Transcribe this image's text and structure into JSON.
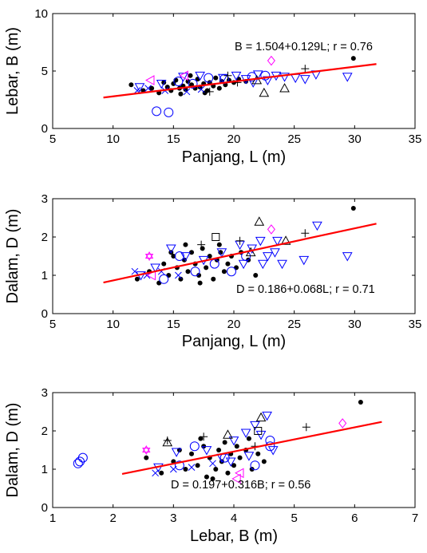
{
  "colors": {
    "fit_line": "#ff0000",
    "black": "#000000",
    "blue": "#0000ff",
    "magenta": "#ff00ff",
    "axis": "#000000"
  },
  "marker_legend_note": "",
  "chart_data": [
    {
      "type": "scatter",
      "xlabel": "Panjang, L (m)",
      "ylabel": "Lebar, B (m)",
      "xlim": [
        5,
        35
      ],
      "ylim": [
        0,
        10
      ],
      "xticks": [
        5,
        10,
        15,
        20,
        25,
        30,
        35
      ],
      "yticks": [
        0,
        5,
        10
      ],
      "annotation": "B = 1.504+0.129L;    r = 0.76",
      "fit": {
        "intercept": 1.504,
        "slope": 0.129,
        "x_range": [
          9.2,
          31.8
        ]
      },
      "series": [
        {
          "marker": "dot",
          "color": "#000000",
          "points": [
            [
              11.5,
              3.8
            ],
            [
              12.5,
              3.3
            ],
            [
              13.2,
              3.5
            ],
            [
              13.8,
              3.1
            ],
            [
              14.2,
              4.0
            ],
            [
              14.5,
              3.6
            ],
            [
              14.8,
              3.3
            ],
            [
              15.0,
              3.9
            ],
            [
              15.2,
              4.2
            ],
            [
              15.5,
              3.5
            ],
            [
              15.8,
              3.7
            ],
            [
              16.0,
              3.4
            ],
            [
              16.2,
              4.1
            ],
            [
              16.5,
              3.8
            ],
            [
              16.8,
              3.5
            ],
            [
              17.0,
              4.3
            ],
            [
              17.2,
              3.6
            ],
            [
              17.5,
              3.9
            ],
            [
              17.8,
              3.3
            ],
            [
              18.0,
              4.0
            ],
            [
              18.3,
              3.7
            ],
            [
              18.5,
              4.4
            ],
            [
              18.8,
              3.5
            ],
            [
              19.0,
              4.1
            ],
            [
              19.3,
              3.8
            ],
            [
              19.6,
              4.2
            ],
            [
              20.0,
              4.0
            ],
            [
              20.4,
              4.3
            ],
            [
              21.0,
              4.1
            ],
            [
              16.4,
              4.6
            ],
            [
              17.6,
              3.1
            ],
            [
              15.6,
              3.0
            ],
            [
              29.9,
              6.1
            ]
          ]
        },
        {
          "marker": "circle",
          "color": "#0000ff",
          "points": [
            [
              13.6,
              1.5
            ],
            [
              14.6,
              1.4
            ],
            [
              15.4,
              4.1
            ],
            [
              16.6,
              3.9
            ],
            [
              17.9,
              4.4
            ],
            [
              19.2,
              4.3
            ],
            [
              21.5,
              4.5
            ],
            [
              22.6,
              4.6
            ]
          ]
        },
        {
          "marker": "triangle-down",
          "color": "#0000ff",
          "points": [
            [
              12.2,
              3.6
            ],
            [
              14.0,
              3.9
            ],
            [
              15.8,
              4.5
            ],
            [
              17.2,
              4.6
            ],
            [
              19.1,
              4.4
            ],
            [
              21.0,
              4.3
            ],
            [
              22.0,
              4.7
            ],
            [
              22.8,
              4.2
            ],
            [
              23.5,
              4.6
            ],
            [
              24.2,
              4.5
            ],
            [
              25.1,
              4.4
            ],
            [
              25.9,
              4.3
            ],
            [
              26.8,
              4.7
            ],
            [
              29.4,
              4.5
            ],
            [
              21.6,
              4.0
            ],
            [
              20.2,
              4.6
            ]
          ]
        },
        {
          "marker": "triangle-up",
          "color": "#000000",
          "points": [
            [
              22.5,
              3.1
            ],
            [
              24.2,
              3.5
            ],
            [
              21.9,
              4.2
            ]
          ]
        },
        {
          "marker": "plus",
          "color": "#000000",
          "points": [
            [
              18.0,
              3.2
            ],
            [
              19.5,
              4.6
            ],
            [
              20.3,
              4.0
            ],
            [
              25.9,
              5.2
            ]
          ]
        },
        {
          "marker": "x",
          "color": "#0000ff",
          "points": [
            [
              12.0,
              3.3
            ],
            [
              12.9,
              3.5
            ],
            [
              14.3,
              3.3
            ],
            [
              16.1,
              3.2
            ],
            [
              17.3,
              3.4
            ]
          ]
        },
        {
          "marker": "triangle-left",
          "color": "#ff00ff",
          "points": [
            [
              13.1,
              4.2
            ],
            [
              15.9,
              4.6
            ]
          ]
        },
        {
          "marker": "diamond",
          "color": "#ff00ff",
          "points": [
            [
              23.1,
              5.9
            ]
          ]
        }
      ]
    },
    {
      "type": "scatter",
      "xlabel": "Panjang, L (m)",
      "ylabel": "Dalam, D (m)",
      "xlim": [
        5,
        35
      ],
      "ylim": [
        0,
        3
      ],
      "xticks": [
        5,
        10,
        15,
        20,
        25,
        30,
        35
      ],
      "yticks": [
        0,
        1,
        2,
        3
      ],
      "annotation": "D = 0.186+0.068L;    r = 0.71",
      "fit": {
        "intercept": 0.186,
        "slope": 0.068,
        "x_range": [
          9.2,
          31.8
        ]
      },
      "series": [
        {
          "marker": "dot",
          "color": "#000000",
          "points": [
            [
              12.0,
              0.9
            ],
            [
              13.0,
              1.1
            ],
            [
              13.8,
              0.8
            ],
            [
              14.2,
              1.3
            ],
            [
              14.6,
              1.0
            ],
            [
              15.0,
              1.5
            ],
            [
              15.3,
              1.2
            ],
            [
              15.6,
              0.9
            ],
            [
              15.9,
              1.4
            ],
            [
              16.2,
              1.1
            ],
            [
              16.5,
              1.6
            ],
            [
              16.8,
              1.3
            ],
            [
              17.1,
              1.0
            ],
            [
              17.4,
              1.7
            ],
            [
              17.7,
              1.2
            ],
            [
              18.0,
              1.5
            ],
            [
              18.3,
              0.9
            ],
            [
              18.6,
              1.4
            ],
            [
              18.9,
              1.6
            ],
            [
              19.2,
              1.1
            ],
            [
              19.5,
              1.3
            ],
            [
              19.8,
              1.5
            ],
            [
              20.2,
              1.2
            ],
            [
              20.6,
              1.6
            ],
            [
              21.2,
              1.4
            ],
            [
              21.8,
              1.0
            ],
            [
              16.0,
              1.8
            ],
            [
              17.2,
              0.8
            ],
            [
              18.8,
              1.8
            ],
            [
              14.8,
              1.6
            ],
            [
              29.9,
              2.75
            ]
          ]
        },
        {
          "marker": "circle",
          "color": "#0000ff",
          "points": [
            [
              14.2,
              0.9
            ],
            [
              15.5,
              1.5
            ],
            [
              16.8,
              1.1
            ],
            [
              18.4,
              1.3
            ],
            [
              19.8,
              1.1
            ],
            [
              21.0,
              1.5
            ]
          ]
        },
        {
          "marker": "triangle-down",
          "color": "#0000ff",
          "points": [
            [
              12.3,
              1.0
            ],
            [
              13.5,
              1.2
            ],
            [
              14.8,
              1.7
            ],
            [
              16.0,
              1.5
            ],
            [
              17.5,
              1.4
            ],
            [
              19.0,
              1.6
            ],
            [
              20.5,
              1.8
            ],
            [
              21.5,
              1.7
            ],
            [
              22.2,
              1.9
            ],
            [
              22.8,
              1.5
            ],
            [
              23.4,
              1.6
            ],
            [
              24.0,
              1.3
            ],
            [
              25.8,
              1.4
            ],
            [
              26.9,
              2.3
            ],
            [
              29.4,
              1.5
            ],
            [
              22.4,
              1.3
            ],
            [
              23.6,
              1.9
            ],
            [
              20.8,
              1.3
            ]
          ]
        },
        {
          "marker": "triangle-up",
          "color": "#000000",
          "points": [
            [
              22.1,
              2.4
            ],
            [
              24.3,
              1.9
            ],
            [
              21.4,
              1.6
            ]
          ]
        },
        {
          "marker": "square",
          "color": "#000000",
          "points": [
            [
              18.5,
              2.0
            ]
          ]
        },
        {
          "marker": "plus",
          "color": "#000000",
          "points": [
            [
              17.3,
              1.8
            ],
            [
              20.5,
              1.9
            ],
            [
              25.9,
              2.1
            ]
          ]
        },
        {
          "marker": "x",
          "color": "#0000ff",
          "points": [
            [
              11.8,
              1.1
            ],
            [
              12.8,
              1.0
            ],
            [
              14.0,
              1.1
            ],
            [
              15.4,
              1.0
            ]
          ]
        },
        {
          "marker": "triangle-left",
          "color": "#ff00ff",
          "points": [
            [
              13.2,
              1.0
            ]
          ]
        },
        {
          "marker": "diamond",
          "color": "#ff00ff",
          "points": [
            [
              23.1,
              2.2
            ]
          ]
        },
        {
          "marker": "star",
          "color": "#ff00ff",
          "points": [
            [
              13.0,
              1.5
            ]
          ]
        }
      ]
    },
    {
      "type": "scatter",
      "xlabel": "Lebar, B (m)",
      "ylabel": "Dalam, D (m)",
      "xlim": [
        1,
        7
      ],
      "ylim": [
        0,
        3
      ],
      "xticks": [
        1,
        2,
        3,
        4,
        5,
        6,
        7
      ],
      "yticks": [
        0,
        1,
        2,
        3
      ],
      "annotation": "D = 0.197+0.316B;    r = 0.56",
      "fit": {
        "intercept": 0.197,
        "slope": 0.316,
        "x_range": [
          2.15,
          6.45
        ]
      },
      "series": [
        {
          "marker": "dot",
          "color": "#000000",
          "points": [
            [
              2.55,
              1.3
            ],
            [
              2.8,
              0.9
            ],
            [
              3.0,
              1.2
            ],
            [
              3.1,
              1.5
            ],
            [
              3.2,
              1.0
            ],
            [
              3.3,
              1.4
            ],
            [
              3.4,
              1.1
            ],
            [
              3.5,
              1.6
            ],
            [
              3.55,
              0.8
            ],
            [
              3.6,
              1.3
            ],
            [
              3.7,
              1.0
            ],
            [
              3.75,
              1.5
            ],
            [
              3.8,
              1.2
            ],
            [
              3.85,
              1.7
            ],
            [
              3.9,
              0.9
            ],
            [
              3.95,
              1.4
            ],
            [
              4.0,
              1.1
            ],
            [
              4.05,
              1.6
            ],
            [
              4.1,
              1.3
            ],
            [
              4.2,
              1.5
            ],
            [
              4.3,
              1.0
            ],
            [
              4.4,
              1.4
            ],
            [
              4.5,
              1.2
            ],
            [
              3.45,
              1.8
            ],
            [
              3.65,
              0.75
            ],
            [
              4.25,
              1.8
            ],
            [
              6.1,
              2.75
            ]
          ]
        },
        {
          "marker": "circle",
          "color": "#0000ff",
          "points": [
            [
              1.45,
              1.2
            ],
            [
              1.5,
              1.3
            ],
            [
              1.42,
              1.15
            ],
            [
              3.35,
              1.6
            ],
            [
              3.85,
              1.3
            ],
            [
              4.35,
              1.1
            ],
            [
              4.6,
              1.6
            ],
            [
              3.1,
              1.1
            ],
            [
              4.6,
              1.75
            ]
          ]
        },
        {
          "marker": "triangle-down",
          "color": "#0000ff",
          "points": [
            [
              2.75,
              1.05
            ],
            [
              3.05,
              1.45
            ],
            [
              3.55,
              1.5
            ],
            [
              3.8,
              1.3
            ],
            [
              4.0,
              1.75
            ],
            [
              4.2,
              1.95
            ],
            [
              4.35,
              2.15
            ],
            [
              4.45,
              1.9
            ],
            [
              4.55,
              2.4
            ],
            [
              4.65,
              1.5
            ],
            [
              4.25,
              1.35
            ],
            [
              3.95,
              1.2
            ]
          ]
        },
        {
          "marker": "triangle-up",
          "color": "#000000",
          "points": [
            [
              2.9,
              1.7
            ],
            [
              3.9,
              1.9
            ],
            [
              4.45,
              2.35
            ]
          ]
        },
        {
          "marker": "square",
          "color": "#000000",
          "points": [
            [
              4.4,
              2.0
            ]
          ]
        },
        {
          "marker": "plus",
          "color": "#000000",
          "points": [
            [
              2.9,
              1.75
            ],
            [
              3.5,
              1.85
            ],
            [
              4.35,
              1.6
            ],
            [
              5.2,
              2.1
            ]
          ]
        },
        {
          "marker": "x",
          "color": "#0000ff",
          "points": [
            [
              2.7,
              0.9
            ],
            [
              3.0,
              1.0
            ],
            [
              3.3,
              1.05
            ],
            [
              3.65,
              1.15
            ]
          ]
        },
        {
          "marker": "triangle-left",
          "color": "#ff00ff",
          "points": [
            [
              4.05,
              0.75
            ],
            [
              4.1,
              0.9
            ]
          ]
        },
        {
          "marker": "diamond",
          "color": "#ff00ff",
          "points": [
            [
              5.8,
              2.2
            ]
          ]
        },
        {
          "marker": "star",
          "color": "#ff00ff",
          "points": [
            [
              2.55,
              1.5
            ]
          ]
        }
      ]
    }
  ]
}
